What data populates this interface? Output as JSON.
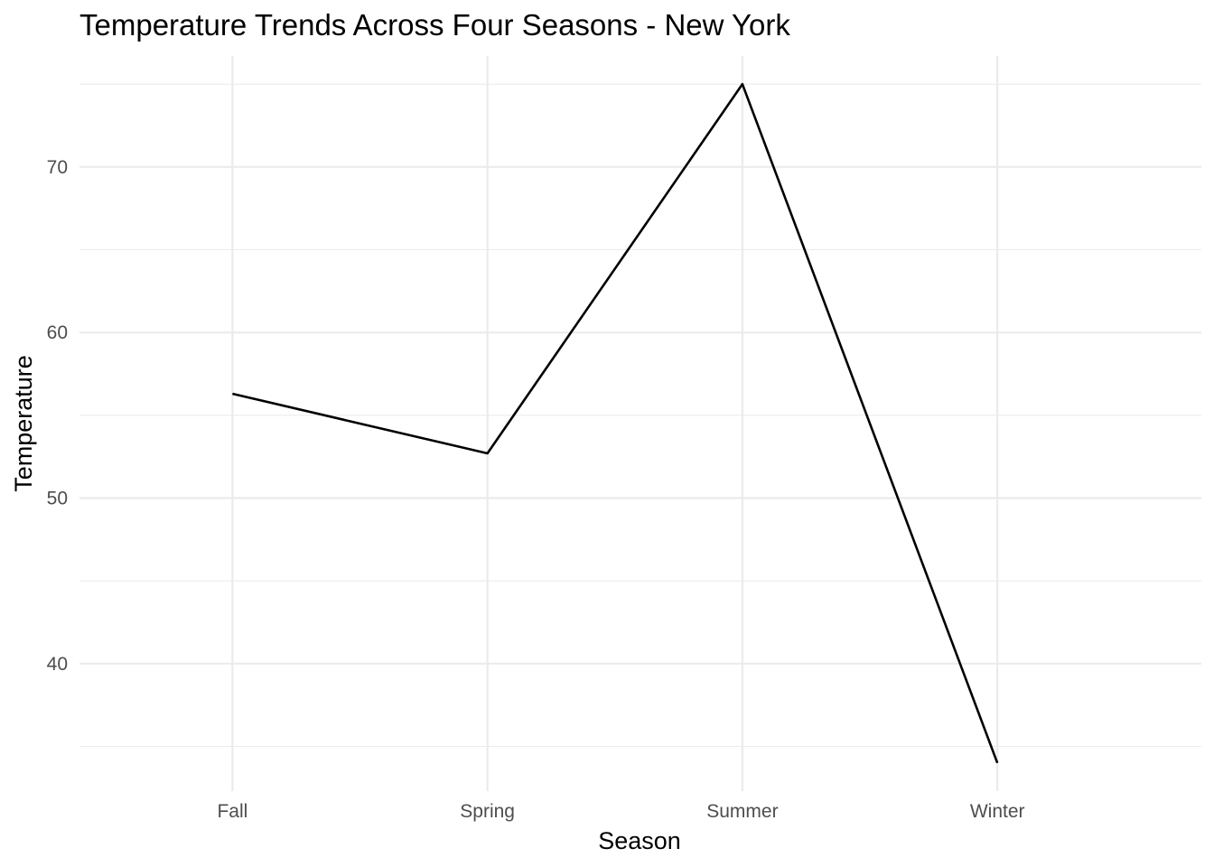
{
  "chart_data": {
    "type": "line",
    "title": "Temperature Trends Across Four Seasons - New York",
    "xlabel": "Season",
    "ylabel": "Temperature",
    "categories": [
      "Fall",
      "Spring",
      "Summer",
      "Winter"
    ],
    "series": [
      {
        "name": "Temperature",
        "values": [
          56.3,
          52.7,
          75.0,
          34.0
        ]
      }
    ],
    "ylim": [
      32.3,
      76.7
    ],
    "yticks": [
      40,
      50,
      60,
      70
    ],
    "yticks_minor": [
      35,
      45,
      55,
      65,
      75
    ],
    "grid": true,
    "legend": "none",
    "colors": {
      "line": "#000000",
      "grid": "#ebebeb",
      "tick_text": "#4d4d4d",
      "background": "#ffffff"
    }
  }
}
